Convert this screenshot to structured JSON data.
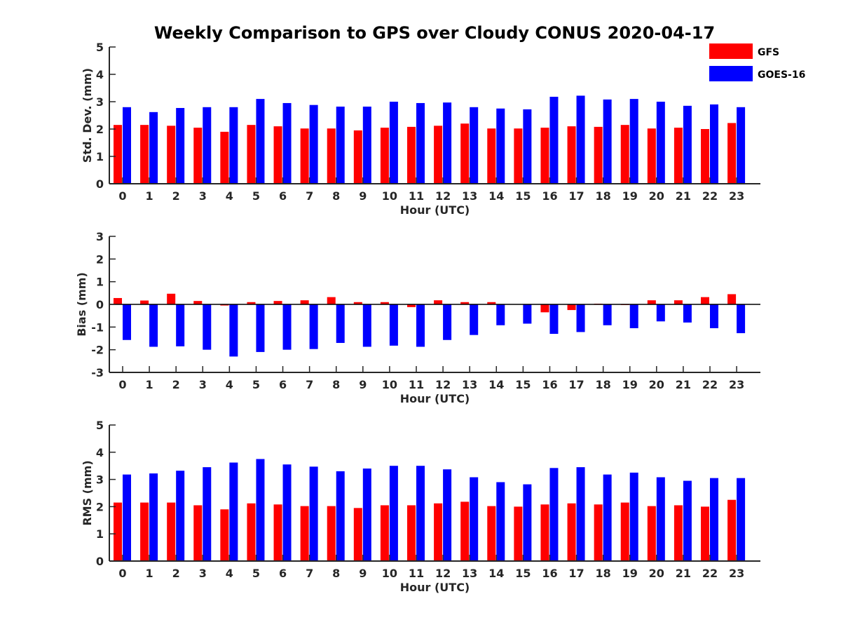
{
  "figure": {
    "title": "Weekly Comparison to GPS over Cloudy CONUS 2020-04-17"
  },
  "legend": {
    "placement": "top-right",
    "entries": [
      {
        "label": "GFS",
        "color": "#ff0000"
      },
      {
        "label": "GOES-16",
        "color": "#0000ff"
      }
    ]
  },
  "chart_data": [
    {
      "type": "bar",
      "xlabel": "Hour (UTC)",
      "ylabel": "Std. Dev. (mm)",
      "ylim": [
        0,
        5
      ],
      "yticks": [
        0,
        1,
        2,
        3,
        4,
        5
      ],
      "categories": [
        "0",
        "1",
        "2",
        "3",
        "4",
        "5",
        "6",
        "7",
        "8",
        "9",
        "10",
        "11",
        "12",
        "13",
        "14",
        "15",
        "16",
        "17",
        "18",
        "19",
        "20",
        "21",
        "22",
        "23"
      ],
      "series": [
        {
          "name": "GFS",
          "color": "#ff0000",
          "values": [
            2.15,
            2.15,
            2.12,
            2.05,
            1.9,
            2.15,
            2.1,
            2.02,
            2.02,
            1.95,
            2.05,
            2.08,
            2.12,
            2.2,
            2.02,
            2.02,
            2.05,
            2.1,
            2.08,
            2.15,
            2.02,
            2.05,
            2.0,
            2.22
          ]
        },
        {
          "name": "GOES-16",
          "color": "#0000ff",
          "values": [
            2.8,
            2.62,
            2.77,
            2.8,
            2.8,
            3.1,
            2.95,
            2.88,
            2.82,
            2.82,
            3.0,
            2.95,
            2.97,
            2.8,
            2.75,
            2.72,
            3.18,
            3.22,
            3.08,
            3.1,
            3.0,
            2.85,
            2.9,
            2.8
          ]
        }
      ]
    },
    {
      "type": "bar",
      "xlabel": "Hour (UTC)",
      "ylabel": "Bias (mm)",
      "ylim": [
        -3,
        3
      ],
      "yticks": [
        -3,
        -2,
        -1,
        0,
        1,
        2,
        3
      ],
      "categories": [
        "0",
        "1",
        "2",
        "3",
        "4",
        "5",
        "6",
        "7",
        "8",
        "9",
        "10",
        "11",
        "12",
        "13",
        "14",
        "15",
        "16",
        "17",
        "18",
        "19",
        "20",
        "21",
        "22",
        "23"
      ],
      "series": [
        {
          "name": "GFS",
          "color": "#ff0000",
          "values": [
            0.28,
            0.17,
            0.47,
            0.15,
            -0.05,
            0.1,
            0.15,
            0.18,
            0.32,
            0.1,
            0.1,
            -0.12,
            0.18,
            0.1,
            0.1,
            0.0,
            -0.35,
            -0.25,
            0.03,
            -0.03,
            0.18,
            0.18,
            0.32,
            0.45
          ]
        },
        {
          "name": "GOES-16",
          "color": "#0000ff",
          "values": [
            -1.57,
            -1.87,
            -1.85,
            -2.0,
            -2.3,
            -2.1,
            -2.0,
            -1.97,
            -1.7,
            -1.87,
            -1.82,
            -1.87,
            -1.57,
            -1.35,
            -0.92,
            -0.85,
            -1.3,
            -1.22,
            -0.92,
            -1.05,
            -0.75,
            -0.8,
            -1.05,
            -1.27
          ]
        }
      ]
    },
    {
      "type": "bar",
      "xlabel": "Hour (UTC)",
      "ylabel": "RMS (mm)",
      "ylim": [
        0,
        5
      ],
      "yticks": [
        0,
        1,
        2,
        3,
        4,
        5
      ],
      "categories": [
        "0",
        "1",
        "2",
        "3",
        "4",
        "5",
        "6",
        "7",
        "8",
        "9",
        "10",
        "11",
        "12",
        "13",
        "14",
        "15",
        "16",
        "17",
        "18",
        "19",
        "20",
        "21",
        "22",
        "23"
      ],
      "series": [
        {
          "name": "GFS",
          "color": "#ff0000",
          "values": [
            2.15,
            2.15,
            2.15,
            2.05,
            1.9,
            2.12,
            2.08,
            2.02,
            2.02,
            1.95,
            2.05,
            2.05,
            2.12,
            2.18,
            2.02,
            2.0,
            2.08,
            2.12,
            2.08,
            2.15,
            2.02,
            2.05,
            2.0,
            2.25
          ]
        },
        {
          "name": "GOES-16",
          "color": "#0000ff",
          "values": [
            3.18,
            3.22,
            3.32,
            3.45,
            3.62,
            3.75,
            3.55,
            3.47,
            3.3,
            3.4,
            3.5,
            3.5,
            3.37,
            3.08,
            2.9,
            2.82,
            3.42,
            3.45,
            3.18,
            3.25,
            3.08,
            2.95,
            3.05,
            3.05
          ]
        }
      ]
    }
  ]
}
